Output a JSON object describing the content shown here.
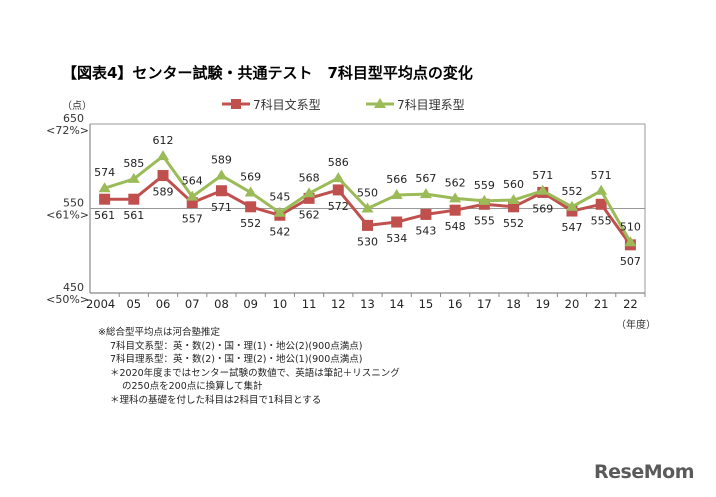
{
  "title": "【図表4】センター試験・共通テスト　7科目型平均点の変化",
  "chart_data": {
    "type": "line",
    "yunit": "（点）",
    "xunit": "（年度）",
    "categories": [
      "2004",
      "05",
      "06",
      "07",
      "08",
      "09",
      "10",
      "11",
      "12",
      "13",
      "14",
      "15",
      "16",
      "17",
      "18",
      "19",
      "20",
      "21",
      "22"
    ],
    "ylim": [
      450,
      650
    ],
    "yticks": [
      {
        "value": 650,
        "label": "650",
        "sub": "<72%>"
      },
      {
        "value": 550,
        "label": "550",
        "sub": "<61%>"
      },
      {
        "value": 450,
        "label": "450",
        "sub": "<50%>"
      }
    ],
    "grid": "550 line only",
    "legend": "top",
    "series": [
      {
        "name": "7科目文系型",
        "color": "#c0504d",
        "marker": "square",
        "values": [
          561,
          561,
          589,
          557,
          571,
          552,
          542,
          562,
          572,
          530,
          534,
          543,
          548,
          555,
          552,
          569,
          547,
          555,
          507
        ]
      },
      {
        "name": "7科目理系型",
        "color": "#9bbb59",
        "marker": "triangle",
        "values": [
          574,
          585,
          612,
          564,
          589,
          569,
          545,
          568,
          586,
          550,
          566,
          567,
          562,
          559,
          560,
          571,
          552,
          571,
          510
        ]
      }
    ]
  },
  "notes": [
    "※総合型平均点は河合塾推定",
    "7科目文系型：英・数(2)・国・理(1)・地公(2)(900点満点)",
    "7科目理系型：英・数(2)・国・理(2)・地公(1)(900点満点)",
    "＊2020年度まではセンター試験の数値で、英語は筆記＋リスニング",
    "の250点を200点に換算して集計",
    "＊理科の基礎を付した科目は2科目で1科目とする"
  ],
  "logo": "ReseMom"
}
